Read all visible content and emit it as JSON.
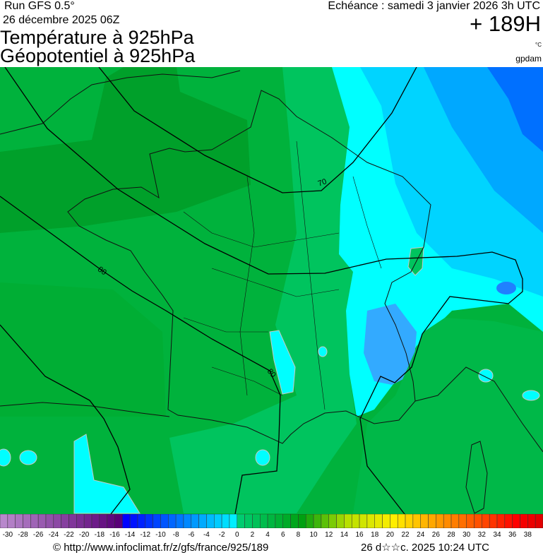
{
  "header": {
    "run": "Run GFS 0.5°",
    "run_date": "26 décembre 2025 06Z",
    "title_1": "Température à 925hPa",
    "title_2": "Géopotentiel à 925hPa",
    "echeance": "Echéance : samedi 3 janvier 2026 3h UTC",
    "forecast_hours": "+ 189H",
    "unit_temperature": "°C",
    "unit_geopotential": "gpdam"
  },
  "map": {
    "contour_labels": [
      "70",
      "80",
      "80"
    ],
    "colors": {
      "dark_green": "#00a02a",
      "green": "#00b23c",
      "light_green": "#00c45e",
      "cyan": "#00ffff",
      "light_blue": "#00d4ff",
      "blue": "#00a8ff",
      "deep_blue": "#0070ff"
    }
  },
  "colorbar": {
    "labels": [
      "-30",
      "-28",
      "-26",
      "-24",
      "-22",
      "-20",
      "-18",
      "-16",
      "-14",
      "-12",
      "-10",
      "-8",
      "-6",
      "-4",
      "-2",
      "0",
      "2",
      "4",
      "6",
      "8",
      "10",
      "12",
      "14",
      "16",
      "18",
      "20",
      "22",
      "24",
      "26",
      "28",
      "30",
      "32",
      "34",
      "36",
      "38"
    ],
    "min": -31,
    "max": 40,
    "stops": [
      {
        "v": -31,
        "c": "#b888cc"
      },
      {
        "v": -16,
        "c": "#5a0078"
      },
      {
        "v": -15,
        "c": "#0000ff"
      },
      {
        "v": -1,
        "c": "#00eeff"
      },
      {
        "v": 0,
        "c": "#00cc70"
      },
      {
        "v": 8,
        "c": "#00a010"
      },
      {
        "v": 14,
        "c": "#b8e000"
      },
      {
        "v": 20,
        "c": "#ffee00"
      },
      {
        "v": 26,
        "c": "#ff9900"
      },
      {
        "v": 32,
        "c": "#ff4400"
      },
      {
        "v": 36,
        "c": "#ff0000"
      },
      {
        "v": 40,
        "c": "#d80000"
      }
    ]
  },
  "footer": {
    "url": "© http://www.infoclimat.fr/z/gfs/france/925/189",
    "generated": "26 d☆☆c. 2025 10:24 UTC"
  }
}
